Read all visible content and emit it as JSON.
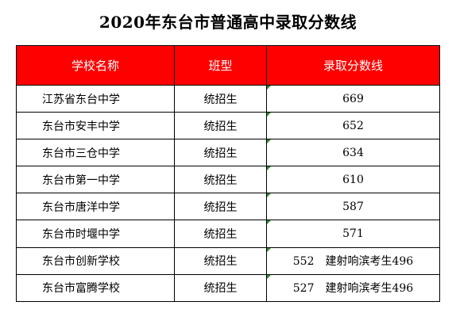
{
  "title": "2020年东台市普通高中录取分数线",
  "table": {
    "headers": [
      "学校名称",
      "班型",
      "录取分数线"
    ],
    "rows": [
      {
        "school": "江苏省东台中学",
        "type": "统招生",
        "score": "669"
      },
      {
        "school": "东台市安丰中学",
        "type": "统招生",
        "score": "652"
      },
      {
        "school": "东台市三仓中学",
        "type": "统招生",
        "score": "634"
      },
      {
        "school": "东台市第一中学",
        "type": "统招生",
        "score": "610"
      },
      {
        "school": "东台市唐洋中学",
        "type": "统招生",
        "score": "587"
      },
      {
        "school": "东台市时堰中学",
        "type": "统招生",
        "score": "571"
      },
      {
        "school": "东台市创新学校",
        "type": "统招生",
        "score": "552　建射响滨考生496"
      },
      {
        "school": "东台市富腾学校",
        "type": "统招生",
        "score": "527　建射响滨考生496"
      }
    ]
  },
  "colors": {
    "header_bg": "#ff0000",
    "header_text": "#ffffff",
    "cell_marker": "#2e8b2e"
  }
}
